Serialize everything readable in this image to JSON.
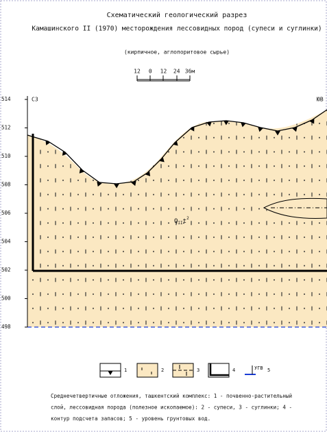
{
  "header": {
    "title": "Схематический геологический разрез",
    "title_line2": "Камашинского II (1970) месторождения лессовидных пород (супеси и суглинки)",
    "subtitle": "(кирпичное, аглопоритовое сырье)"
  },
  "scale": {
    "labels": [
      "12",
      "0",
      "12",
      "24",
      "36м"
    ]
  },
  "section": {
    "elevations": [
      "514",
      "512",
      "510",
      "508",
      "506",
      "504",
      "502",
      "500",
      "498"
    ],
    "left_label": "СЗ",
    "right_label": "ЮВ",
    "unit_symbol": "Q",
    "unit_sub": "II",
    "unit_t": "t",
    "unit_sup": "2"
  },
  "legend": {
    "numbers": [
      "1",
      "2",
      "3",
      "4",
      "5"
    ],
    "water_label": "УГВ"
  },
  "caption": [
    "Среднечетвертичные отложения, ташкентский комплекс: 1 - почвенно-растительный",
    "слой, лессовидная порода (полезное ископаемое): 2 - супеси, 3 - суглинки; 4 -",
    "контур подсчета запасов; 5 - уровень грунтовых вод."
  ]
}
